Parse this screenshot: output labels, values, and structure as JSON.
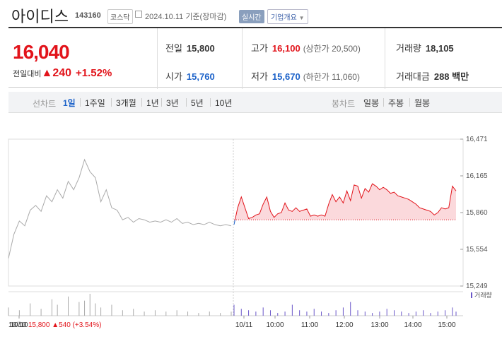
{
  "header": {
    "name": "아이디스",
    "code": "143160",
    "market": "코스닥",
    "date": "2024.10.11",
    "basis": "기준(장마감)",
    "realtime": "실시간",
    "company_btn": "기업개요",
    "company_caret": "▼"
  },
  "quote": {
    "current": "16,040",
    "change_label": "전일대비",
    "change_arrow": "▲",
    "change": "240",
    "change_pct": "+1.52%"
  },
  "summary": [
    [
      {
        "label": "전일",
        "value": "15,800",
        "color": "black"
      },
      {
        "label": "고가",
        "value": "16,100",
        "color": "red",
        "sub": "(상한가 20,500)"
      },
      {
        "label": "거래량",
        "value": "18,105",
        "color": "black"
      }
    ],
    [
      {
        "label": "시가",
        "value": "15,760",
        "color": "blue"
      },
      {
        "label": "저가",
        "value": "15,670",
        "color": "blue",
        "sub": "(하한가 11,060)"
      },
      {
        "label": "거래대금",
        "value": "288 백만",
        "color": "black"
      }
    ]
  ],
  "tabs": {
    "line_title": "선차트",
    "line": [
      "1일",
      "1주일",
      "3개월",
      "1년",
      "3년",
      "5년",
      "10년"
    ],
    "line_active": 0,
    "candle_title": "봉차트",
    "candle": [
      "일봉",
      "주봉",
      "월봉"
    ]
  },
  "colors": {
    "up": "#e2141b",
    "down": "#1c62c9",
    "prev_price": "#e2141b",
    "volume": "#6a57c9"
  },
  "chart_data": {
    "type": "line",
    "y_ticks": [
      "16,471",
      "16,165",
      "15,860",
      "15,554",
      "15,249"
    ],
    "ylim": [
      15249,
      16471
    ],
    "prev_close": 15800,
    "x_labels": [
      "10/10",
      "10/11",
      "10:00",
      "11:00",
      "12:00",
      "13:00",
      "14:00",
      "15:00"
    ],
    "volume_label": "거래량",
    "prev_day": [
      [
        0,
        15480
      ],
      [
        1,
        15680
      ],
      [
        2,
        15790
      ],
      [
        3,
        15750
      ],
      [
        4,
        15880
      ],
      [
        5,
        15920
      ],
      [
        6,
        15870
      ],
      [
        7,
        16000
      ],
      [
        8,
        15950
      ],
      [
        9,
        16050
      ],
      [
        10,
        15980
      ],
      [
        11,
        16120
      ],
      [
        12,
        16050
      ],
      [
        13,
        16150
      ],
      [
        14,
        16300
      ],
      [
        15,
        16200
      ],
      [
        16,
        16150
      ],
      [
        17,
        15950
      ],
      [
        18,
        16050
      ],
      [
        19,
        15900
      ],
      [
        20,
        15880
      ],
      [
        21,
        15800
      ],
      [
        22,
        15820
      ],
      [
        23,
        15780
      ],
      [
        24,
        15810
      ],
      [
        25,
        15800
      ],
      [
        26,
        15780
      ],
      [
        27,
        15790
      ],
      [
        28,
        15780
      ],
      [
        29,
        15800
      ],
      [
        30,
        15780
      ],
      [
        31,
        15810
      ],
      [
        32,
        15770
      ],
      [
        33,
        15780
      ],
      [
        34,
        15760
      ],
      [
        35,
        15770
      ],
      [
        36,
        15760
      ],
      [
        37,
        15780
      ],
      [
        38,
        15760
      ],
      [
        39,
        15750
      ],
      [
        40,
        15760
      ],
      [
        41,
        15750
      ]
    ],
    "today": [
      [
        0,
        15760
      ],
      [
        1,
        15900
      ],
      [
        2,
        15990
      ],
      [
        3,
        15900
      ],
      [
        4,
        15810
      ],
      [
        5,
        15820
      ],
      [
        6,
        15840
      ],
      [
        7,
        15850
      ],
      [
        8,
        15930
      ],
      [
        9,
        15990
      ],
      [
        10,
        15870
      ],
      [
        11,
        15820
      ],
      [
        12,
        15850
      ],
      [
        13,
        15860
      ],
      [
        14,
        15940
      ],
      [
        15,
        15880
      ],
      [
        16,
        15870
      ],
      [
        17,
        15900
      ],
      [
        18,
        15870
      ],
      [
        19,
        15880
      ],
      [
        20,
        15890
      ],
      [
        21,
        15830
      ],
      [
        22,
        15840
      ],
      [
        23,
        15830
      ],
      [
        24,
        15840
      ],
      [
        25,
        15830
      ],
      [
        26,
        15930
      ],
      [
        27,
        16010
      ],
      [
        28,
        15950
      ],
      [
        29,
        15990
      ],
      [
        30,
        15940
      ],
      [
        31,
        16040
      ],
      [
        32,
        15960
      ],
      [
        33,
        16090
      ],
      [
        34,
        16080
      ],
      [
        35,
        15980
      ],
      [
        36,
        16060
      ],
      [
        37,
        16030
      ],
      [
        38,
        16100
      ],
      [
        39,
        16080
      ],
      [
        40,
        16050
      ],
      [
        41,
        16070
      ],
      [
        42,
        16050
      ],
      [
        43,
        16020
      ],
      [
        44,
        16030
      ],
      [
        45,
        16000
      ],
      [
        46,
        15990
      ],
      [
        47,
        15980
      ],
      [
        48,
        15970
      ],
      [
        49,
        15950
      ],
      [
        50,
        15930
      ],
      [
        51,
        15900
      ],
      [
        52,
        15890
      ],
      [
        53,
        15880
      ],
      [
        54,
        15870
      ],
      [
        55,
        15840
      ],
      [
        56,
        15860
      ],
      [
        57,
        15900
      ],
      [
        58,
        15890
      ],
      [
        59,
        15900
      ],
      [
        60,
        16080
      ],
      [
        61,
        16040
      ]
    ],
    "prev_volume": [
      [
        0,
        6
      ],
      [
        2,
        4
      ],
      [
        4,
        9
      ],
      [
        6,
        5
      ],
      [
        8,
        12
      ],
      [
        9,
        8
      ],
      [
        11,
        14
      ],
      [
        13,
        10
      ],
      [
        14,
        11
      ],
      [
        15,
        16
      ],
      [
        16,
        9
      ],
      [
        17,
        6
      ],
      [
        19,
        8
      ],
      [
        21,
        4
      ],
      [
        23,
        5
      ],
      [
        25,
        3
      ],
      [
        27,
        4
      ],
      [
        29,
        3
      ],
      [
        31,
        4
      ],
      [
        33,
        3
      ],
      [
        35,
        2
      ],
      [
        37,
        3
      ],
      [
        39,
        2
      ],
      [
        41,
        3
      ]
    ],
    "today_volume": [
      [
        0,
        8
      ],
      [
        2,
        5
      ],
      [
        4,
        4
      ],
      [
        6,
        3
      ],
      [
        8,
        6
      ],
      [
        10,
        4
      ],
      [
        12,
        2
      ],
      [
        14,
        3
      ],
      [
        16,
        8
      ],
      [
        18,
        4
      ],
      [
        20,
        3
      ],
      [
        22,
        5
      ],
      [
        24,
        3
      ],
      [
        26,
        2
      ],
      [
        28,
        4
      ],
      [
        30,
        6
      ],
      [
        32,
        10
      ],
      [
        34,
        4
      ],
      [
        36,
        3
      ],
      [
        38,
        2
      ],
      [
        40,
        3
      ],
      [
        42,
        5
      ],
      [
        44,
        4
      ],
      [
        46,
        3
      ],
      [
        48,
        2
      ],
      [
        50,
        3
      ],
      [
        52,
        4
      ],
      [
        54,
        2
      ],
      [
        56,
        3
      ],
      [
        58,
        4
      ],
      [
        60,
        6
      ],
      [
        61,
        3
      ]
    ]
  },
  "footer": {
    "date": "10/10",
    "price": "15,800",
    "arrow": "▲",
    "change": "540",
    "pct": "(+3.54%)"
  }
}
